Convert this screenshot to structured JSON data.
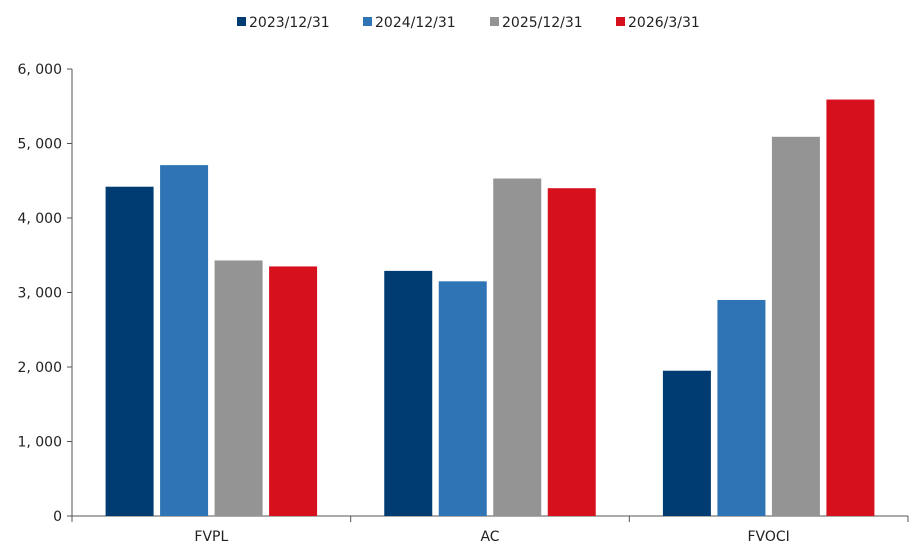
{
  "chart_data": {
    "type": "bar",
    "categories": [
      "FVPL",
      "AC",
      "FVOCI"
    ],
    "series": [
      {
        "name": "2023/12/31",
        "color": "#003c71",
        "values": [
          4420,
          3290,
          1950
        ]
      },
      {
        "name": "2024/12/31",
        "color": "#2f75b5",
        "values": [
          4710,
          3150,
          2900
        ]
      },
      {
        "name": "2025/12/31",
        "color": "#949494",
        "values": [
          3430,
          4530,
          5090
        ]
      },
      {
        "name": "2026/3/31",
        "color": "#d7101e",
        "values": [
          3350,
          4400,
          5590
        ]
      }
    ],
    "ylim": [
      0,
      6000
    ],
    "yticks": [
      0,
      1000,
      2000,
      3000,
      4000,
      5000,
      6000
    ],
    "ytick_labels": [
      "0",
      "1, 000",
      "2, 000",
      "3, 000",
      "4, 000",
      "5, 000",
      "6, 000"
    ],
    "legend_position": "top-center",
    "grid": false
  }
}
